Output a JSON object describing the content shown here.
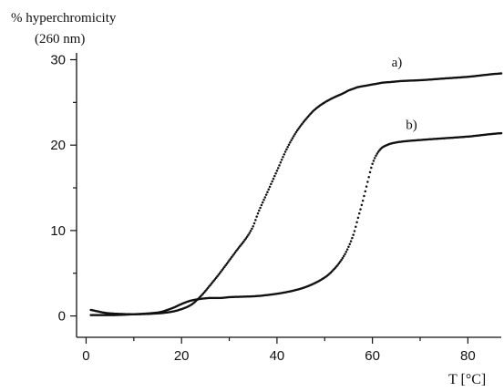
{
  "chart_data": {
    "type": "scatter",
    "ylabel_line1": "% hyperchromicity",
    "ylabel_line2": "(260 nm)",
    "xlabel": "T [°C]",
    "xlim": [
      -2,
      87
    ],
    "ylim": [
      -2.5,
      30.8
    ],
    "x_ticks": [
      0,
      20,
      40,
      60,
      80
    ],
    "y_ticks": [
      0,
      10,
      20,
      30
    ],
    "grid": false,
    "series": [
      {
        "name": "a)",
        "x": [
          1,
          5,
          10,
          15,
          18,
          20,
          22,
          24,
          26,
          28,
          30,
          32,
          33,
          34,
          35,
          36,
          38,
          40,
          42,
          44,
          46,
          48,
          50,
          52,
          54,
          55,
          56,
          57,
          58,
          59,
          60,
          61,
          62,
          64,
          66,
          70,
          75,
          80,
          85,
          87
        ],
        "y": [
          0.7,
          0.3,
          0.2,
          0.3,
          0.5,
          0.8,
          1.3,
          2.3,
          3.6,
          5.0,
          6.5,
          8.0,
          8.7,
          9.5,
          10.5,
          12.0,
          14.5,
          17.0,
          19.5,
          21.5,
          23.0,
          24.2,
          25.0,
          25.6,
          26.1,
          26.4,
          26.6,
          26.8,
          26.9,
          27.0,
          27.1,
          27.2,
          27.3,
          27.4,
          27.5,
          27.6,
          27.8,
          28.0,
          28.3,
          28.4
        ]
      },
      {
        "name": "b)",
        "x": [
          1,
          5,
          10,
          15,
          18,
          20,
          22,
          24,
          26,
          28,
          30,
          35,
          40,
          45,
          50,
          52,
          54,
          56,
          57,
          58,
          59,
          60,
          61,
          62,
          63,
          64,
          66,
          70,
          75,
          80,
          85,
          87
        ],
        "y": [
          0.1,
          0.1,
          0.2,
          0.4,
          0.9,
          1.4,
          1.8,
          2.0,
          2.1,
          2.1,
          2.2,
          2.3,
          2.6,
          3.2,
          4.5,
          5.5,
          7.0,
          9.5,
          11.5,
          13.5,
          15.7,
          17.8,
          19.0,
          19.7,
          20.0,
          20.2,
          20.4,
          20.6,
          20.8,
          21.0,
          21.3,
          21.4
        ]
      }
    ]
  }
}
